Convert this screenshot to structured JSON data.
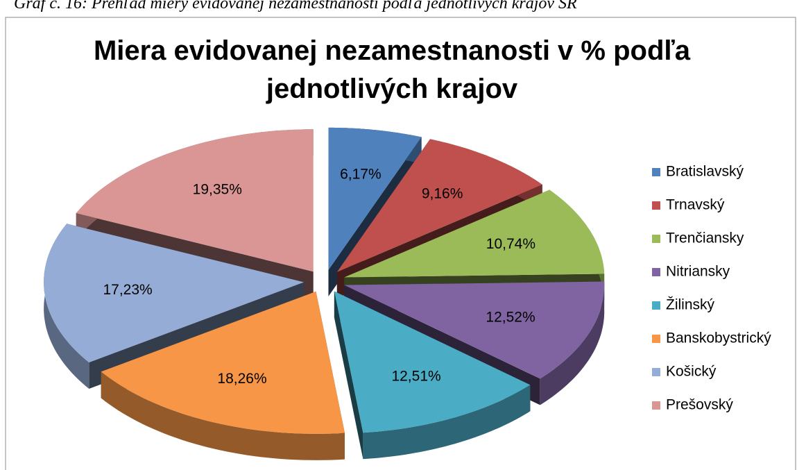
{
  "caption": "Graf č. 16: Prehľad miery evidovanej nezamestnanosti  podľa jednotlivých krajov SR",
  "chart_data": {
    "type": "pie3d",
    "title": "Miera evidovanej nezamestnanosti v % podľa jednotlivých krajov",
    "categories": [
      "Bratislavský",
      "Trnavský",
      "Trenčiansky",
      "Nitriansky",
      "Žilinský",
      "Banskobystrický",
      "Košický",
      "Prešovský"
    ],
    "values": [
      6.17,
      9.16,
      10.74,
      12.52,
      12.51,
      18.26,
      17.23,
      19.35
    ],
    "value_labels": [
      "6,17%",
      "9,16%",
      "10,74%",
      "12,52%",
      "12,51%",
      "18,26%",
      "17,23%",
      "19,35%"
    ],
    "colors": [
      "#4f81bd",
      "#c0504d",
      "#9bbb59",
      "#8064a2",
      "#4bacc6",
      "#f79646",
      "#95add6",
      "#d99694"
    ],
    "legend": "right"
  }
}
